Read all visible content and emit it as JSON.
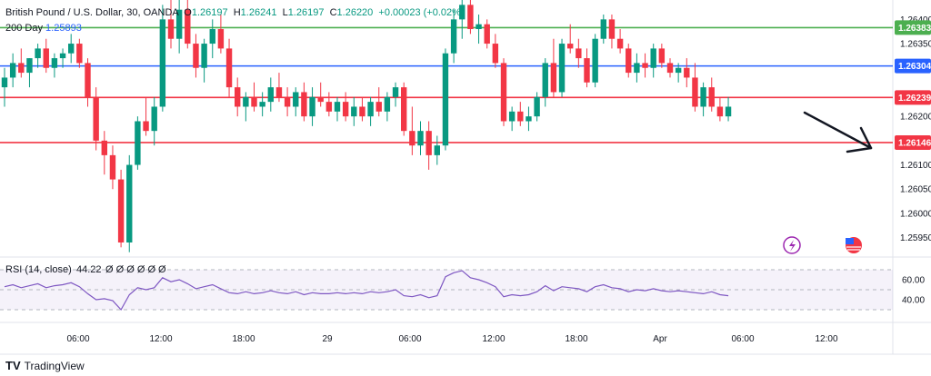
{
  "header": {
    "instrument": "British Pound / U.S. Dollar, 30, OANDA",
    "ohlc": {
      "o_label": "O",
      "o": "1.26197",
      "h_label": "H",
      "h": "1.26241",
      "l_label": "L",
      "l": "1.26197",
      "c_label": "C",
      "c": "1.26220",
      "change": "+0.00023 (+0.02%)"
    },
    "ma_label": "200 Day",
    "ma_value": "1.25893"
  },
  "chart_data": {
    "type": "candlestick",
    "y_range": [
      1.2591,
      1.2644
    ],
    "y_ticks": [
      "1.26400",
      "1.26350",
      "1.26200",
      "1.26100",
      "1.26050",
      "1.26000",
      "1.25950"
    ],
    "y_tick_values": [
      1.264,
      1.2635,
      1.262,
      1.261,
      1.2605,
      1.26,
      1.2595
    ],
    "x_ticks": [
      "06:00",
      "12:00",
      "18:00",
      "29",
      "06:00",
      "12:00",
      "18:00",
      "Apr",
      "06:00",
      "12:00"
    ],
    "levels": [
      {
        "value": 1.26383,
        "label": "1.26383",
        "color": "#4caf50"
      },
      {
        "value": 1.26304,
        "label": "1.26304",
        "color": "#2962ff"
      },
      {
        "value": 1.26239,
        "label": "1.26239",
        "color": "#f23645"
      },
      {
        "value": 1.26146,
        "label": "1.26146",
        "color": "#f23645"
      }
    ],
    "candles": [
      [
        1.2626,
        1.263,
        1.2622,
        1.2628
      ],
      [
        1.2628,
        1.2633,
        1.2626,
        1.2631
      ],
      [
        1.2631,
        1.2634,
        1.2628,
        1.2629
      ],
      [
        1.2629,
        1.2632,
        1.2626,
        1.2632
      ],
      [
        1.2632,
        1.2635,
        1.263,
        1.2634
      ],
      [
        1.2634,
        1.2636,
        1.2629,
        1.263
      ],
      [
        1.263,
        1.2633,
        1.2628,
        1.2632
      ],
      [
        1.2632,
        1.2634,
        1.263,
        1.2633
      ],
      [
        1.2633,
        1.2637,
        1.2631,
        1.2635
      ],
      [
        1.2635,
        1.2636,
        1.263,
        1.2631
      ],
      [
        1.2631,
        1.2632,
        1.2622,
        1.2624
      ],
      [
        1.2624,
        1.2626,
        1.2613,
        1.2615
      ],
      [
        1.2615,
        1.2617,
        1.2608,
        1.2612
      ],
      [
        1.2612,
        1.2614,
        1.2605,
        1.2607
      ],
      [
        1.2607,
        1.2609,
        1.2593,
        1.2594
      ],
      [
        1.2594,
        1.2612,
        1.2592,
        1.261
      ],
      [
        1.261,
        1.262,
        1.2609,
        1.2619
      ],
      [
        1.2619,
        1.2624,
        1.2616,
        1.2617
      ],
      [
        1.2617,
        1.2624,
        1.2614,
        1.2622
      ],
      [
        1.2622,
        1.2643,
        1.2621,
        1.264
      ],
      [
        1.264,
        1.2645,
        1.2634,
        1.2636
      ],
      [
        1.2636,
        1.2644,
        1.2633,
        1.2642
      ],
      [
        1.2642,
        1.2644,
        1.2634,
        1.2635
      ],
      [
        1.2635,
        1.2637,
        1.2628,
        1.263
      ],
      [
        1.263,
        1.2636,
        1.2627,
        1.2635
      ],
      [
        1.2635,
        1.264,
        1.2632,
        1.2638
      ],
      [
        1.2638,
        1.2641,
        1.2633,
        1.2634
      ],
      [
        1.2634,
        1.2636,
        1.2624,
        1.2626
      ],
      [
        1.2626,
        1.2628,
        1.262,
        1.2622
      ],
      [
        1.2622,
        1.2625,
        1.2619,
        1.2624
      ],
      [
        1.2624,
        1.2627,
        1.2621,
        1.2622
      ],
      [
        1.2622,
        1.2625,
        1.262,
        1.2623
      ],
      [
        1.2623,
        1.2628,
        1.2621,
        1.2626
      ],
      [
        1.2626,
        1.2629,
        1.2623,
        1.2624
      ],
      [
        1.2624,
        1.2626,
        1.262,
        1.2622
      ],
      [
        1.2622,
        1.2626,
        1.262,
        1.2625
      ],
      [
        1.2625,
        1.2627,
        1.2619,
        1.262
      ],
      [
        1.262,
        1.2626,
        1.2618,
        1.2624
      ],
      [
        1.2624,
        1.2627,
        1.2622,
        1.2623
      ],
      [
        1.2623,
        1.2625,
        1.262,
        1.2621
      ],
      [
        1.2621,
        1.2624,
        1.2619,
        1.2623
      ],
      [
        1.2623,
        1.2625,
        1.2619,
        1.262
      ],
      [
        1.262,
        1.2624,
        1.2618,
        1.2622
      ],
      [
        1.2622,
        1.2624,
        1.2619,
        1.262
      ],
      [
        1.262,
        1.2624,
        1.2618,
        1.2623
      ],
      [
        1.2623,
        1.2626,
        1.262,
        1.2621
      ],
      [
        1.2621,
        1.2625,
        1.2619,
        1.2624
      ],
      [
        1.2624,
        1.2627,
        1.2622,
        1.2626
      ],
      [
        1.2626,
        1.2627,
        1.2616,
        1.2617
      ],
      [
        1.2617,
        1.2622,
        1.2612,
        1.2614
      ],
      [
        1.2614,
        1.2619,
        1.2612,
        1.2617
      ],
      [
        1.2617,
        1.2619,
        1.2609,
        1.2612
      ],
      [
        1.2612,
        1.2616,
        1.261,
        1.2614
      ],
      [
        1.2614,
        1.2634,
        1.2613,
        1.2633
      ],
      [
        1.2633,
        1.2642,
        1.2631,
        1.264
      ],
      [
        1.264,
        1.2645,
        1.2636,
        1.2643
      ],
      [
        1.2643,
        1.2645,
        1.2637,
        1.2638
      ],
      [
        1.2638,
        1.2641,
        1.2635,
        1.2639
      ],
      [
        1.2639,
        1.264,
        1.2634,
        1.2635
      ],
      [
        1.2635,
        1.2637,
        1.263,
        1.2631
      ],
      [
        1.2631,
        1.2632,
        1.2618,
        1.2619
      ],
      [
        1.2619,
        1.2622,
        1.2617,
        1.2621
      ],
      [
        1.2621,
        1.2623,
        1.2618,
        1.2619
      ],
      [
        1.2619,
        1.2622,
        1.2617,
        1.262
      ],
      [
        1.262,
        1.2625,
        1.2619,
        1.2624
      ],
      [
        1.2624,
        1.2632,
        1.2622,
        1.2631
      ],
      [
        1.2631,
        1.2636,
        1.2624,
        1.2625
      ],
      [
        1.2625,
        1.2636,
        1.2624,
        1.2635
      ],
      [
        1.2635,
        1.2639,
        1.2633,
        1.2634
      ],
      [
        1.2634,
        1.2636,
        1.263,
        1.2632
      ],
      [
        1.2632,
        1.2634,
        1.2626,
        1.2627
      ],
      [
        1.2627,
        1.2637,
        1.2626,
        1.2636
      ],
      [
        1.2636,
        1.2641,
        1.2635,
        1.264
      ],
      [
        1.264,
        1.2641,
        1.2634,
        1.2636
      ],
      [
        1.2636,
        1.2638,
        1.2633,
        1.2634
      ],
      [
        1.2634,
        1.2635,
        1.2628,
        1.2629
      ],
      [
        1.2629,
        1.2633,
        1.2627,
        1.2631
      ],
      [
        1.2631,
        1.2633,
        1.2628,
        1.263
      ],
      [
        1.263,
        1.2635,
        1.2628,
        1.2634
      ],
      [
        1.2634,
        1.2635,
        1.263,
        1.2631
      ],
      [
        1.2631,
        1.2632,
        1.2628,
        1.2629
      ],
      [
        1.2629,
        1.2631,
        1.2627,
        1.263
      ],
      [
        1.263,
        1.2632,
        1.2626,
        1.2628
      ],
      [
        1.2628,
        1.2631,
        1.2621,
        1.2622
      ],
      [
        1.2622,
        1.2627,
        1.262,
        1.2626
      ],
      [
        1.2626,
        1.2628,
        1.2621,
        1.2622
      ],
      [
        1.2622,
        1.2624,
        1.2619,
        1.262
      ],
      [
        1.262,
        1.2624,
        1.2619,
        1.2622
      ]
    ],
    "annotation": "arrow-down-right"
  },
  "rsi": {
    "label": "RSI (14, close)",
    "value": "44.22",
    "extra": "Ø Ø Ø Ø Ø Ø",
    "ticks": [
      "60.00",
      "40.00"
    ],
    "tick_values": [
      60,
      40
    ],
    "range": [
      20,
      80
    ],
    "values": [
      53,
      55,
      52,
      54,
      56,
      52,
      54,
      55,
      57,
      53,
      46,
      40,
      41,
      39,
      30,
      45,
      52,
      50,
      52,
      62,
      58,
      60,
      56,
      51,
      53,
      55,
      51,
      47,
      46,
      48,
      46,
      47,
      49,
      47,
      46,
      48,
      45,
      47,
      46,
      46,
      47,
      46,
      47,
      46,
      48,
      47,
      48,
      50,
      44,
      43,
      45,
      42,
      44,
      63,
      67,
      69,
      62,
      60,
      57,
      53,
      43,
      45,
      44,
      45,
      48,
      54,
      49,
      53,
      52,
      51,
      48,
      53,
      55,
      52,
      51,
      48,
      50,
      49,
      51,
      49,
      48,
      49,
      48,
      47,
      46,
      48,
      45,
      44
    ]
  },
  "icons": {
    "bolt": "lightning-icon",
    "flag": "us-flag-icon"
  },
  "brand": {
    "logo": "TV",
    "name": "TradingView"
  }
}
